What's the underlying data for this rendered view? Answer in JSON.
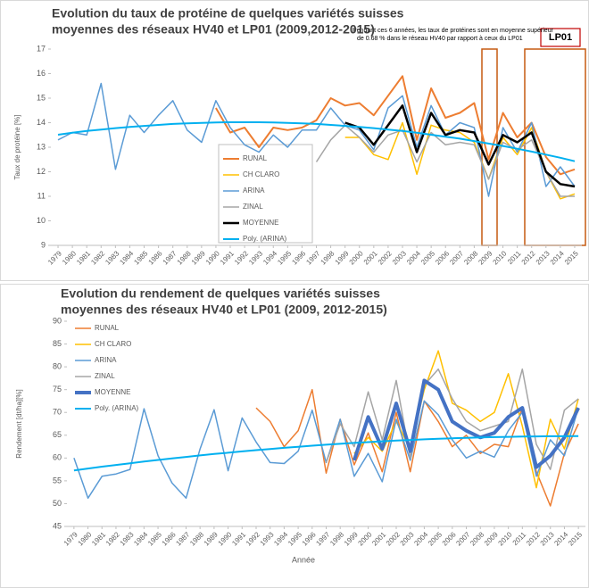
{
  "chart_data": [
    {
      "type": "line",
      "title": [
        "Evolution du taux de protéine de quelques variétés suisses",
        "moyennes des réseaux HV40 et LP01 (2009,2012-2015)"
      ],
      "annotation": [
        "Pendant ces 6 années, les taux de protéines sont en moyenne supérieur",
        "de  0.68 % dans le réseau HV40 par rapport à ceux du LP01"
      ],
      "box_label": "LP01",
      "y_label": "Taux de protéine [%]",
      "categories": [
        "1979",
        "1980",
        "1981",
        "1982",
        "1983",
        "1984",
        "1985",
        "1986",
        "1987",
        "1988",
        "1989",
        "1990",
        "1991",
        "1992",
        "1993",
        "1994",
        "1995",
        "1996",
        "1997",
        "1998",
        "1999",
        "2000",
        "2001",
        "2002",
        "2003",
        "2004",
        "2005",
        "2006",
        "2007",
        "2008",
        "2009",
        "2010",
        "2011",
        "2012",
        "2013",
        "2014",
        "2015"
      ],
      "ylim": [
        9,
        17
      ],
      "yticks": [
        9,
        10,
        11,
        12,
        13,
        14,
        15,
        16,
        17
      ],
      "grid": false,
      "series": [
        {
          "name": "RUNAL",
          "color": "#ed7d31",
          "line_width": 2,
          "values": [
            null,
            null,
            null,
            null,
            null,
            null,
            null,
            null,
            null,
            null,
            null,
            14.6,
            13.6,
            13.8,
            13.0,
            13.8,
            13.7,
            13.8,
            14.1,
            15.0,
            14.7,
            14.8,
            14.3,
            15.1,
            15.9,
            13.3,
            15.4,
            14.2,
            14.4,
            14.8,
            12.5,
            14.4,
            13.4,
            14.0,
            12.6,
            11.9,
            12.1
          ]
        },
        {
          "name": "CH CLARO",
          "color": "#ffc000",
          "line_width": 1.5,
          "values": [
            null,
            null,
            null,
            null,
            null,
            null,
            null,
            null,
            null,
            null,
            null,
            null,
            null,
            null,
            null,
            null,
            null,
            null,
            null,
            null,
            13.4,
            13.4,
            12.7,
            12.5,
            14.0,
            11.9,
            13.9,
            13.7,
            13.6,
            13.2,
            11.7,
            13.4,
            12.7,
            13.8,
            12.0,
            10.9,
            11.1
          ]
        },
        {
          "name": "ARINA",
          "color": "#5b9bd5",
          "line_width": 1.5,
          "values": [
            13.3,
            13.6,
            13.5,
            15.6,
            12.1,
            14.3,
            13.6,
            14.3,
            14.9,
            13.7,
            13.2,
            14.9,
            13.8,
            13.1,
            12.8,
            13.5,
            13.0,
            13.7,
            13.7,
            14.6,
            13.9,
            13.7,
            12.9,
            14.6,
            15.1,
            13.0,
            14.7,
            13.5,
            14.0,
            13.8,
            11.0,
            13.8,
            12.8,
            14.0,
            11.4,
            12.2,
            11.4
          ]
        },
        {
          "name": "ZINAL",
          "color": "#a5a5a5",
          "line_width": 1.5,
          "values": [
            null,
            null,
            null,
            null,
            null,
            null,
            null,
            null,
            null,
            null,
            null,
            null,
            null,
            null,
            null,
            null,
            null,
            null,
            12.4,
            13.3,
            13.9,
            13.4,
            12.8,
            13.5,
            13.7,
            12.4,
            13.6,
            13.1,
            13.2,
            13.1,
            11.7,
            13.2,
            12.9,
            13.3,
            12.0,
            11.0,
            11.0
          ]
        },
        {
          "name": "MOYENNE",
          "color": "#000000",
          "line_width": 2.5,
          "values": [
            null,
            null,
            null,
            null,
            null,
            null,
            null,
            null,
            null,
            null,
            null,
            null,
            null,
            null,
            null,
            null,
            null,
            null,
            null,
            null,
            14.0,
            13.8,
            13.1,
            13.9,
            14.7,
            12.8,
            14.4,
            13.5,
            13.7,
            13.6,
            12.3,
            13.5,
            13.2,
            13.6,
            12.0,
            11.5,
            11.4
          ]
        },
        {
          "name": "Poly. (ARINA)",
          "color": "#00b0f0",
          "line_width": 2,
          "values": [
            13.51,
            13.59,
            13.66,
            13.72,
            13.78,
            13.83,
            13.87,
            13.91,
            13.95,
            13.97,
            13.99,
            14.01,
            14.02,
            14.02,
            14.02,
            14.01,
            13.99,
            13.97,
            13.95,
            13.91,
            13.87,
            13.83,
            13.78,
            13.72,
            13.66,
            13.59,
            13.51,
            13.43,
            13.35,
            13.25,
            13.15,
            13.05,
            12.94,
            12.82,
            12.7,
            12.57,
            12.43
          ]
        }
      ]
    },
    {
      "type": "line",
      "title": [
        "Evolution du rendement de quelques variétés suisses",
        "moyennes des réseaux HV40 et LP01 (2009, 2012-2015)"
      ],
      "y_label": "Rendement [dt/ha][%]",
      "x_label": "Année",
      "categories": [
        "1979",
        "1980",
        "1981",
        "1982",
        "1983",
        "1984",
        "1985",
        "1986",
        "1987",
        "1988",
        "1989",
        "1990",
        "1991",
        "1992",
        "1993",
        "1994",
        "1995",
        "1996",
        "1997",
        "1998",
        "1999",
        "2000",
        "2001",
        "2002",
        "2003",
        "2004",
        "2005",
        "2006",
        "2007",
        "2008",
        "2009",
        "2010",
        "2011",
        "2012",
        "2013",
        "2014",
        "2015"
      ],
      "ylim": [
        45,
        90
      ],
      "yticks": [
        45,
        50,
        55,
        60,
        65,
        70,
        75,
        80,
        85,
        90
      ],
      "grid": false,
      "series": [
        {
          "name": "RUNAL",
          "color": "#ed7d31",
          "line_width": 1.5,
          "values": [
            null,
            null,
            null,
            null,
            null,
            null,
            null,
            null,
            null,
            null,
            null,
            null,
            null,
            71,
            68,
            62.5,
            66,
            75,
            56.7,
            68.5,
            58.5,
            65.5,
            57,
            70,
            57,
            72.5,
            68,
            62.5,
            65,
            61,
            63,
            62.5,
            71,
            57,
            49.5,
            61,
            67.5
          ]
        },
        {
          "name": "CH CLARO",
          "color": "#ffc000",
          "line_width": 1.5,
          "values": [
            null,
            null,
            null,
            null,
            null,
            null,
            null,
            null,
            null,
            null,
            null,
            null,
            null,
            null,
            null,
            null,
            null,
            null,
            null,
            null,
            61,
            64.5,
            61.5,
            68,
            62,
            75,
            83.5,
            72,
            70.5,
            68,
            70,
            78.5,
            67,
            53.5,
            68.5,
            62,
            73
          ]
        },
        {
          "name": "ARINA",
          "color": "#5b9bd5",
          "line_width": 1.5,
          "values": [
            60,
            51.2,
            56,
            56.5,
            57.5,
            70.8,
            60.5,
            54.5,
            51.2,
            62,
            70.6,
            57.2,
            68.8,
            63.5,
            59,
            58.8,
            61.5,
            70.5,
            59,
            68.5,
            56,
            61,
            54.8,
            68.5,
            59.5,
            72.5,
            69.5,
            64,
            60,
            61.5,
            60.2,
            66,
            70,
            56,
            64,
            60.5,
            71
          ]
        },
        {
          "name": "ZINAL",
          "color": "#a5a5a5",
          "line_width": 1.5,
          "values": [
            null,
            null,
            null,
            null,
            null,
            null,
            null,
            null,
            null,
            null,
            null,
            null,
            null,
            null,
            null,
            null,
            null,
            null,
            59,
            67.5,
            62.5,
            74.5,
            64,
            77,
            60,
            76,
            79.5,
            73,
            68,
            66,
            67,
            68,
            79.5,
            63,
            57.5,
            70.5,
            73
          ]
        },
        {
          "name": "MOYENNE",
          "color": "#4472c4",
          "line_width": 4,
          "values": [
            null,
            null,
            null,
            null,
            null,
            null,
            null,
            null,
            null,
            null,
            null,
            null,
            null,
            null,
            null,
            null,
            null,
            null,
            null,
            null,
            59.5,
            69,
            62,
            72,
            61.5,
            77,
            75,
            68,
            66,
            64.5,
            65.5,
            69,
            71,
            58,
            60.5,
            64.5,
            71
          ]
        },
        {
          "name": "Poly. (ARINA)",
          "color": "#00b0f0",
          "line_width": 2,
          "values": [
            57.28,
            57.69,
            58.1,
            58.48,
            58.86,
            59.23,
            59.58,
            59.92,
            60.25,
            60.57,
            60.88,
            61.17,
            61.46,
            61.73,
            61.99,
            62.24,
            62.48,
            62.71,
            62.92,
            63.12,
            63.32,
            63.49,
            63.66,
            63.82,
            63.96,
            64.1,
            64.22,
            64.33,
            64.43,
            64.52,
            64.59,
            64.65,
            64.71,
            64.75,
            64.78,
            64.79,
            64.8
          ]
        }
      ]
    }
  ]
}
